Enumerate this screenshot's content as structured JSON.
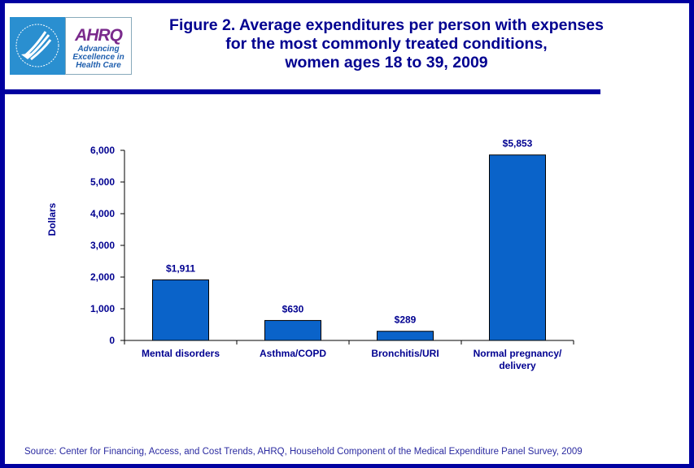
{
  "header": {
    "title_lines": [
      "Figure 2. Average expenditures per person with expenses",
      "for the most commonly treated conditions,",
      "women ages 18 to 39, 2009"
    ],
    "logo": {
      "left_icon": "hhs-eagle-icon",
      "mark": "AHRQ",
      "tagline": [
        "Advancing",
        "Excellence in",
        "Health Care"
      ]
    }
  },
  "colors": {
    "frame": "#0000a0",
    "bar": "#0a63c9",
    "text": "#000090"
  },
  "chart_data": {
    "type": "bar",
    "title": "Figure 2. Average expenditures per person with expenses for the most commonly treated conditions, women ages 18 to 39, 2009",
    "categories": [
      "Mental disorders",
      "Asthma/COPD",
      "Bronchitis/URI",
      "Normal pregnancy/ delivery"
    ],
    "category_lines": [
      [
        "Mental disorders"
      ],
      [
        "Asthma/COPD"
      ],
      [
        "Bronchitis/URI"
      ],
      [
        "Normal pregnancy/",
        "delivery"
      ]
    ],
    "values": [
      1911,
      630,
      289,
      5853
    ],
    "data_labels": [
      "$1,911",
      "$630",
      "$289",
      "$5,853"
    ],
    "xlabel": "",
    "ylabel": "Dollars",
    "ylim": [
      0,
      6000
    ],
    "yticks": [
      0,
      1000,
      2000,
      3000,
      4000,
      5000,
      6000
    ],
    "ytick_labels": [
      "0",
      "1,000",
      "2,000",
      "3,000",
      "4,000",
      "5,000",
      "6,000"
    ],
    "grid": false,
    "legend": "none"
  },
  "footer": {
    "source": "Source: Center for Financing, Access, and Cost Trends, AHRQ, Household Component of the Medical Expenditure Panel Survey,  2009"
  }
}
